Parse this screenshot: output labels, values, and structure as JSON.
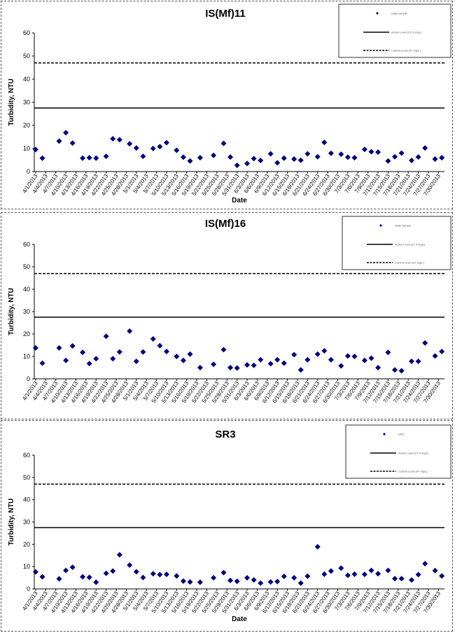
{
  "chart_data": [
    {
      "type": "scatter",
      "title": "IS(Mf)11",
      "xlabel": "Date",
      "ylabel": "Turbidity, NTU",
      "ylim": [
        0,
        60
      ],
      "yticks": [
        0,
        10,
        20,
        30,
        40,
        50,
        60
      ],
      "grid": false,
      "legend_position": "top-right",
      "x_tick_labels": [
        "4/1/2013",
        "4/4/2013",
        "4/7/2013",
        "4/10/2013",
        "4/13/2013",
        "4/16/2013",
        "4/19/2013",
        "4/22/2013",
        "4/25/2013",
        "4/28/2013",
        "5/1/2013",
        "5/4/2013",
        "5/7/2013",
        "5/10/2013",
        "5/13/2013",
        "5/16/2013",
        "5/19/2013",
        "5/22/2013",
        "5/25/2013",
        "5/28/2013",
        "5/31/2013",
        "6/3/2013",
        "6/6/2013",
        "6/9/2013",
        "6/12/2013",
        "6/15/2013",
        "6/18/2013",
        "6/21/2013",
        "6/24/2013",
        "6/27/2013",
        "6/30/2013",
        "7/3/2013",
        "7/6/2013",
        "7/9/2013",
        "7/12/2013",
        "7/15/2013",
        "7/18/2013",
        "7/21/2013",
        "7/24/2013",
        "7/27/2013",
        "7/30/2013"
      ],
      "series": [
        {
          "name": "Daily sample",
          "marker": "diamond",
          "color": "#000080",
          "x": [
            "4/1/2013",
            "4/3/2013",
            "4/8/2013",
            "4/10/2013",
            "4/12/2013",
            "4/15/2013",
            "4/17/2013",
            "4/19/2013",
            "4/22/2013",
            "4/24/2013",
            "4/26/2013",
            "4/29/2013",
            "5/1/2013",
            "5/3/2013",
            "5/6/2013",
            "5/8/2013",
            "5/10/2013",
            "5/13/2013",
            "5/15/2013",
            "5/17/2013",
            "5/20/2013",
            "5/24/2013",
            "5/27/2013",
            "5/29/2013",
            "5/31/2013",
            "6/3/2013",
            "6/5/2013",
            "6/7/2013",
            "6/10/2013",
            "6/12/2013",
            "6/14/2013",
            "6/17/2013",
            "6/19/2013",
            "6/21/2013",
            "6/24/2013",
            "6/26/2013",
            "6/28/2013",
            "7/1/2013",
            "7/3/2013",
            "7/5/2013",
            "7/8/2013",
            "7/10/2013",
            "7/12/2013",
            "7/15/2013",
            "7/17/2013",
            "7/19/2013",
            "7/22/2013",
            "7/24/2013",
            "7/26/2013",
            "7/29/2013",
            "7/31/2013"
          ],
          "y": [
            9.5,
            5.8,
            13.2,
            16.8,
            12.3,
            5.8,
            6.0,
            5.8,
            6.6,
            14.2,
            13.8,
            12.0,
            10.2,
            6.6,
            10.0,
            10.8,
            12.5,
            9.2,
            6.2,
            4.6,
            6.0,
            7.0,
            12.2,
            6.3,
            2.7,
            3.5,
            5.6,
            4.8,
            7.7,
            3.8,
            5.8,
            5.4,
            4.9,
            7.7,
            6.4,
            12.6,
            7.9,
            7.5,
            6.2,
            6.0,
            9.6,
            8.6,
            8.4,
            4.6,
            6.4,
            8.0,
            4.8,
            6.3,
            10.2,
            5.4,
            6.0
          ]
        }
      ],
      "reference_lines": [
        {
          "name": "Action Level (27.5 mg/L)",
          "y": 27.5,
          "style": "solid"
        },
        {
          "name": "Control Level (47 mg/L)",
          "y": 47,
          "style": "dashed"
        }
      ]
    },
    {
      "type": "scatter",
      "title": "IS(Mf)16",
      "xlabel": "",
      "ylabel": "Turbidity, NTU",
      "ylim": [
        0,
        60
      ],
      "yticks": [
        0,
        10,
        20,
        30,
        40,
        50,
        60
      ],
      "grid": false,
      "legend_position": "top-right",
      "x_tick_labels": [
        "4/1/2013",
        "4/4/2013",
        "4/7/2013",
        "4/10/2013",
        "4/13/2013",
        "4/16/2013",
        "4/19/2013",
        "4/22/2013",
        "4/25/2013",
        "4/28/2013",
        "5/1/2013",
        "5/4/2013",
        "5/7/2013",
        "5/10/2013",
        "5/13/2013",
        "5/16/2013",
        "5/19/2013",
        "5/22/2013",
        "5/25/2013",
        "5/28/2013",
        "5/31/2013",
        "6/3/2013",
        "6/6/2013",
        "6/9/2013",
        "6/12/2013",
        "6/15/2013",
        "6/18/2013",
        "6/21/2013",
        "6/24/2013",
        "6/27/2013",
        "6/30/2013",
        "7/3/2013",
        "7/6/2013",
        "7/9/2013",
        "7/12/2013",
        "7/15/2013",
        "7/18/2013",
        "7/21/2013",
        "7/24/2013",
        "7/27/2013",
        "7/30/2013"
      ],
      "series": [
        {
          "name": "Daily sample",
          "marker": "diamond",
          "color": "#000080",
          "x": [
            "4/1/2013",
            "4/3/2013",
            "4/8/2013",
            "4/10/2013",
            "4/12/2013",
            "4/15/2013",
            "4/17/2013",
            "4/19/2013",
            "4/22/2013",
            "4/24/2013",
            "4/26/2013",
            "4/29/2013",
            "5/1/2013",
            "5/3/2013",
            "5/6/2013",
            "5/8/2013",
            "5/10/2013",
            "5/13/2013",
            "5/15/2013",
            "5/17/2013",
            "5/20/2013",
            "5/24/2013",
            "5/27/2013",
            "5/29/2013",
            "5/31/2013",
            "6/3/2013",
            "6/5/2013",
            "6/7/2013",
            "6/10/2013",
            "6/12/2013",
            "6/14/2013",
            "6/17/2013",
            "6/19/2013",
            "6/21/2013",
            "6/24/2013",
            "6/26/2013",
            "6/28/2013",
            "7/1/2013",
            "7/3/2013",
            "7/5/2013",
            "7/8/2013",
            "7/10/2013",
            "7/12/2013",
            "7/15/2013",
            "7/17/2013",
            "7/19/2013",
            "7/22/2013",
            "7/24/2013",
            "7/26/2013",
            "7/29/2013",
            "7/31/2013"
          ],
          "y": [
            13.8,
            7.0,
            13.8,
            8.2,
            14.7,
            11.8,
            6.8,
            9.0,
            19.0,
            9.0,
            12.0,
            21.3,
            7.8,
            12.0,
            17.8,
            14.8,
            12.2,
            10.0,
            8.2,
            11.0,
            5.0,
            6.5,
            13.0,
            5.0,
            4.8,
            6.2,
            6.0,
            8.5,
            6.7,
            8.5,
            7.0,
            10.8,
            4.0,
            8.5,
            11.0,
            12.5,
            8.5,
            5.8,
            10.2,
            10.0,
            8.2,
            9.2,
            5.0,
            11.8,
            4.0,
            3.6,
            7.8,
            7.8,
            16.0,
            10.2,
            12.2
          ]
        }
      ],
      "reference_lines": [
        {
          "name": "Action Level (27.5 mg/L)",
          "y": 27.5,
          "style": "solid"
        },
        {
          "name": "Control Level (47 mg/L)",
          "y": 47,
          "style": "dashed"
        }
      ]
    },
    {
      "type": "scatter",
      "title": "SR3",
      "xlabel": "Date",
      "ylabel": "Turbidity, NTU",
      "ylim": [
        0,
        60
      ],
      "yticks": [
        0,
        10,
        20,
        30,
        40,
        50,
        60
      ],
      "grid": false,
      "legend_position": "top-right",
      "x_tick_labels": [
        "4/1/2013",
        "4/4/2013",
        "4/7/2013",
        "4/10/2013",
        "4/13/2013",
        "4/16/2013",
        "4/19/2013",
        "4/22/2013",
        "4/25/2013",
        "4/28/2013",
        "5/1/2013",
        "5/4/2013",
        "5/7/2013",
        "5/10/2013",
        "5/13/2013",
        "5/16/2013",
        "5/19/2013",
        "5/22/2013",
        "5/25/2013",
        "5/28/2013",
        "5/31/2013",
        "6/3/2013",
        "6/6/2013",
        "6/9/2013",
        "6/12/2013",
        "6/15/2013",
        "6/18/2013",
        "6/21/2013",
        "6/24/2013",
        "6/27/2013",
        "6/30/2013",
        "7/3/2013",
        "7/6/2013",
        "7/9/2013",
        "7/12/2013",
        "7/15/2013",
        "7/18/2013",
        "7/21/2013",
        "7/24/2013",
        "7/27/2013",
        "7/30/2013"
      ],
      "series": [
        {
          "name": "SR3",
          "marker": "diamond",
          "color": "#000080",
          "x": [
            "4/1/2013",
            "4/3/2013",
            "4/8/2013",
            "4/10/2013",
            "4/12/2013",
            "4/15/2013",
            "4/17/2013",
            "4/19/2013",
            "4/22/2013",
            "4/24/2013",
            "4/26/2013",
            "4/29/2013",
            "5/1/2013",
            "5/3/2013",
            "5/6/2013",
            "5/8/2013",
            "5/10/2013",
            "5/13/2013",
            "5/15/2013",
            "5/17/2013",
            "5/20/2013",
            "5/24/2013",
            "5/27/2013",
            "5/29/2013",
            "5/31/2013",
            "6/3/2013",
            "6/5/2013",
            "6/7/2013",
            "6/10/2013",
            "6/12/2013",
            "6/14/2013",
            "6/17/2013",
            "6/19/2013",
            "6/21/2013",
            "6/24/2013",
            "6/26/2013",
            "6/28/2013",
            "7/1/2013",
            "7/3/2013",
            "7/5/2013",
            "7/8/2013",
            "7/10/2013",
            "7/12/2013",
            "7/15/2013",
            "7/17/2013",
            "7/19/2013",
            "7/22/2013",
            "7/24/2013",
            "7/26/2013",
            "7/29/2013",
            "7/31/2013"
          ],
          "y": [
            7.6,
            5.4,
            4.5,
            8.3,
            9.7,
            5.4,
            5.2,
            3.0,
            7.0,
            8.0,
            15.3,
            10.7,
            7.7,
            5.1,
            6.8,
            6.4,
            6.5,
            5.8,
            3.5,
            3.1,
            3.0,
            5.0,
            7.3,
            3.8,
            3.4,
            5.0,
            4.0,
            2.6,
            3.1,
            3.3,
            5.6,
            5.0,
            2.6,
            5.7,
            18.9,
            6.6,
            8.0,
            9.3,
            6.1,
            6.6,
            6.5,
            8.3,
            6.8,
            8.3,
            4.6,
            4.6,
            4.0,
            6.4,
            11.3,
            8.2,
            5.8
          ]
        }
      ],
      "reference_lines": [
        {
          "name": "Action Level (27.5 mg/L)",
          "y": 27.5,
          "style": "solid"
        },
        {
          "name": "Control Level (47 mg/L)",
          "y": 47,
          "style": "dashed"
        }
      ]
    }
  ]
}
